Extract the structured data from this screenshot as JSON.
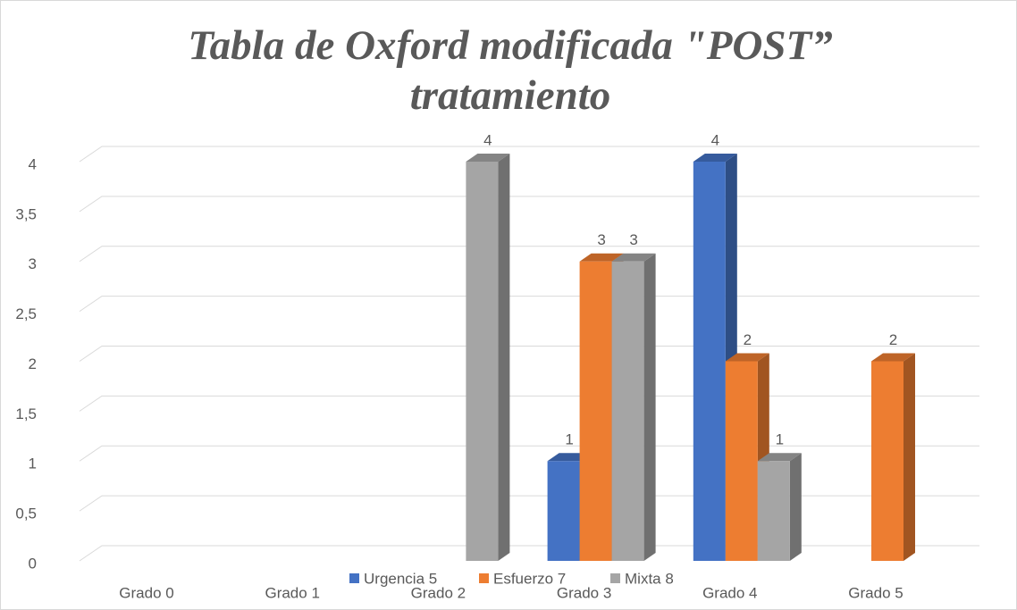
{
  "chart_data": {
    "type": "bar3d",
    "title": "Tabla de Oxford modificada \"POST” tratamiento",
    "categories": [
      "Grado 0",
      "Grado 1",
      "Grado 2",
      "Grado 3",
      "Grado 4",
      "Grado 5"
    ],
    "series": [
      {
        "name": "Urgencia 5",
        "color": "#4472c4",
        "values": [
          null,
          null,
          null,
          1,
          4,
          null
        ]
      },
      {
        "name": "Esfuerzo 7",
        "color": "#ed7d31",
        "values": [
          null,
          null,
          null,
          3,
          2,
          2
        ]
      },
      {
        "name": "Mixta 8",
        "color": "#a5a5a5",
        "values": [
          null,
          null,
          4,
          3,
          1,
          null
        ]
      }
    ],
    "ylim": [
      0,
      4
    ],
    "yticks": [
      0,
      {
        "value": 0.5,
        "label": "0,5"
      },
      1,
      {
        "value": 1.5,
        "label": "1,5"
      },
      2,
      {
        "value": 2.5,
        "label": "2,5"
      },
      3,
      {
        "value": 3.5,
        "label": "3,5"
      },
      4
    ],
    "grid": true,
    "legend": "bottom",
    "data_labels": true
  }
}
